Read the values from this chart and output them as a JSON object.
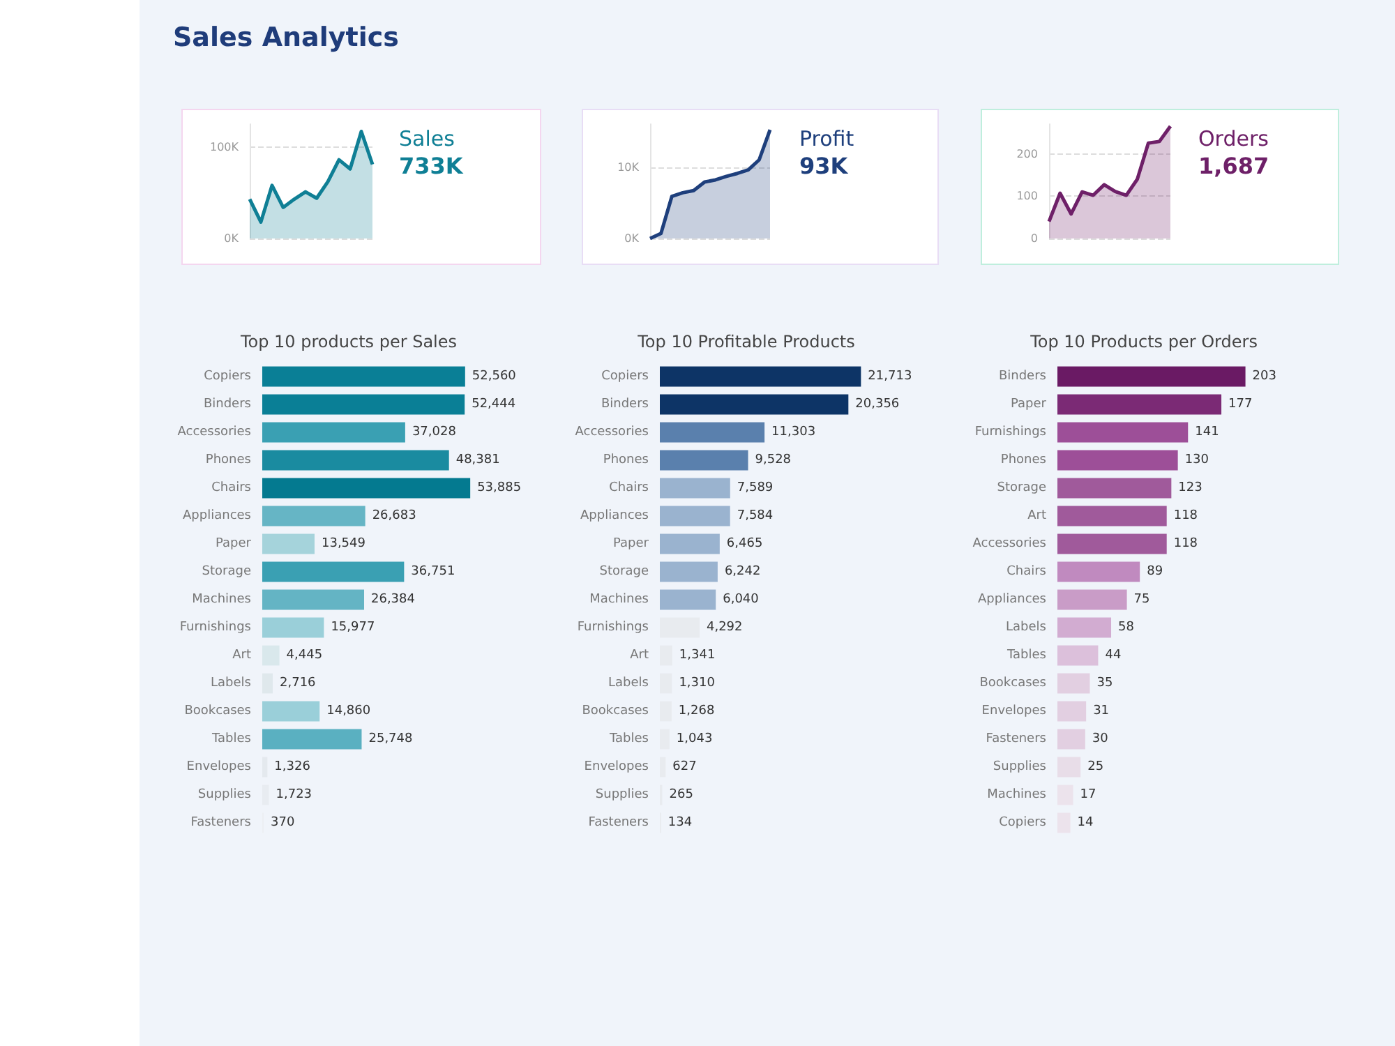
{
  "chart_data": [
    {
      "type": "area",
      "title": "Sales Analytics",
      "annotations": [
        "Sales",
        "733K"
      ],
      "categories": [
        null,
        null,
        null,
        null,
        null,
        null,
        null,
        null,
        null,
        null,
        null,
        null
      ],
      "series": [
        {
          "color": "#0f7f95",
          "values": [
            43000,
            18000,
            58000,
            34000,
            43000,
            51000,
            44000,
            62000,
            86000,
            76000,
            117000,
            81000
          ]
        }
      ],
      "ylim": [
        0,
        125000
      ],
      "yticks": [
        {
          "value": 0,
          "label": "0K"
        },
        {
          "value": 100000,
          "label": "100K"
        }
      ],
      "grid": "y",
      "tick_labels": "y"
    },
    {
      "type": "area",
      "annotations": [
        "Profit",
        "93K"
      ],
      "categories": [
        null,
        null,
        null,
        null,
        null,
        null,
        null,
        null,
        null,
        null,
        null,
        null
      ],
      "series": [
        {
          "color": "#1e3f7c",
          "values": [
            0,
            700,
            5900,
            6400,
            6700,
            7900,
            8200,
            8700,
            9100,
            9600,
            11000,
            15200
          ]
        }
      ],
      "ylim": [
        0,
        16000
      ],
      "yticks": [
        {
          "value": 0,
          "label": "0K"
        },
        {
          "value": 10000,
          "label": "10K"
        }
      ],
      "grid": "y",
      "tick_labels": "y"
    },
    {
      "type": "area",
      "annotations": [
        "Orders",
        "1,687"
      ],
      "categories": [
        null,
        null,
        null,
        null,
        null,
        null,
        null,
        null,
        null,
        null,
        null,
        null
      ],
      "series": [
        {
          "color": "#6e2068",
          "values": [
            40,
            107,
            58,
            110,
            102,
            127,
            111,
            102,
            140,
            225,
            229,
            265
          ]
        }
      ],
      "ylim": [
        0,
        270
      ],
      "yticks": [
        0,
        100,
        200
      ],
      "grid": "y",
      "tick_labels": "y"
    },
    {
      "type": "bar",
      "orientation": "horizontal",
      "title": "Top 10 products per Sales",
      "value_labels": [
        "52,560",
        "52,444",
        "37,028",
        "48,381",
        "53,885",
        "26,683",
        "13,549",
        "36,751",
        "26,384",
        "15,977",
        "4,445",
        "2,716",
        "14,860",
        "25,748",
        "1,326",
        "1,723",
        "370"
      ],
      "categories": [
        "Copiers",
        "Binders",
        "Accessories",
        "Phones",
        "Chairs",
        "Appliances",
        "Paper",
        "Storage",
        "Machines",
        "Furnishings",
        "Art",
        "Labels",
        "Bookcases",
        "Tables",
        "Envelopes",
        "Supplies",
        "Fasteners"
      ],
      "values": [
        52560,
        52444,
        37028,
        48381,
        53885,
        26683,
        13549,
        36751,
        26384,
        15977,
        4445,
        2716,
        14860,
        25748,
        1326,
        1723,
        370
      ],
      "colors": [
        "#0a7f96",
        "#0a7f96",
        "#3aa0b3",
        "#1a8ba0",
        "#047a90",
        "#66b5c5",
        "#a5d3db",
        "#3aa0b3",
        "#64b4c4",
        "#9acfd9",
        "#d9e8ec",
        "#dfe8ec",
        "#9acfd9",
        "#5ab0c1",
        "#e4e9ee",
        "#e8ecf1",
        "#eceff3"
      ]
    },
    {
      "type": "bar",
      "orientation": "horizontal",
      "title": "Top 10 Profitable Products",
      "value_labels": [
        "21,713",
        "20,356",
        "11,303",
        "9,528",
        "7,589",
        "7,584",
        "6,465",
        "6,242",
        "6,040",
        "4,292",
        "1,341",
        "1,310",
        "1,268",
        "1,043",
        "627",
        "265",
        "134"
      ],
      "categories": [
        "Copiers",
        "Binders",
        "Accessories",
        "Phones",
        "Chairs",
        "Appliances",
        "Paper",
        "Storage",
        "Machines",
        "Furnishings",
        "Art",
        "Labels",
        "Bookcases",
        "Tables",
        "Envelopes",
        "Supplies",
        "Fasteners"
      ],
      "values": [
        21713,
        20356,
        11303,
        9528,
        7589,
        7584,
        6465,
        6242,
        6040,
        4292,
        1341,
        1310,
        1268,
        1043,
        627,
        265,
        134
      ],
      "colors": [
        "#0d3466",
        "#0d3466",
        "#5a80ad",
        "#5a80ad",
        "#9ab3cf",
        "#9ab3cf",
        "#9ab3cf",
        "#9ab3cf",
        "#9ab3cf",
        "#e8ebef",
        "#e8ebef",
        "#e8ebef",
        "#e8ebef",
        "#e8ebef",
        "#e8ebef",
        "#e8ebef",
        "#e8ebef"
      ]
    },
    {
      "type": "bar",
      "orientation": "horizontal",
      "title": "Top 10 Products per Orders",
      "data_labels": true,
      "categories": [
        "Binders",
        "Paper",
        "Furnishings",
        "Phones",
        "Storage",
        "Art",
        "Accessories",
        "Chairs",
        "Appliances",
        "Labels",
        "Tables",
        "Bookcases",
        "Envelopes",
        "Fasteners",
        "Supplies",
        "Machines",
        "Copiers"
      ],
      "values": [
        203,
        177,
        141,
        130,
        123,
        118,
        118,
        89,
        75,
        58,
        44,
        35,
        31,
        30,
        25,
        17,
        14
      ],
      "colors": [
        "#6a1a64",
        "#7b2a75",
        "#9d4f98",
        "#9d4f98",
        "#a05a9b",
        "#a05a9b",
        "#a05a9b",
        "#c08abf",
        "#c99cc7",
        "#d2acd1",
        "#dcc0db",
        "#e2cfe1",
        "#e2cfe1",
        "#e2cfe1",
        "#e8dde8",
        "#ece3ec",
        "#ece3ec"
      ]
    }
  ]
}
